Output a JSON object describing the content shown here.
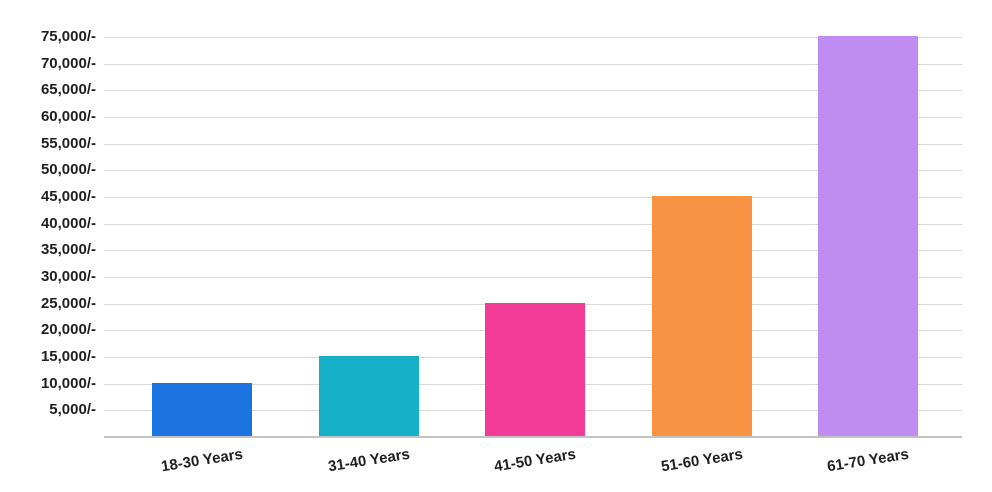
{
  "chart_data": {
    "type": "bar",
    "title": "",
    "xlabel": "",
    "ylabel": "",
    "categories": [
      "18-30 Years",
      "31-40 Years",
      "41-50 Years",
      "51-60 Years",
      "61-70 Years"
    ],
    "values": [
      10000,
      15000,
      25000,
      45000,
      75000
    ],
    "bar_colors": [
      "#1B73E0",
      "#17B0C9",
      "#F23B97",
      "#F79342",
      "#BF8DF2"
    ],
    "ylim": [
      0,
      75000
    ],
    "y_ticks": [
      {
        "value": 5000,
        "label": "5,000/-"
      },
      {
        "value": 10000,
        "label": "10,000/-"
      },
      {
        "value": 15000,
        "label": "15,000/-"
      },
      {
        "value": 20000,
        "label": "20,000/-"
      },
      {
        "value": 25000,
        "label": "25,000/-"
      },
      {
        "value": 30000,
        "label": "30,000/-"
      },
      {
        "value": 35000,
        "label": "35,000/-"
      },
      {
        "value": 40000,
        "label": "40,000/-"
      },
      {
        "value": 45000,
        "label": "45,000/-"
      },
      {
        "value": 50000,
        "label": "50,000/-"
      },
      {
        "value": 55000,
        "label": "55,000/-"
      },
      {
        "value": 60000,
        "label": "60,000/-"
      },
      {
        "value": 65000,
        "label": "65,000/-"
      },
      {
        "value": 70000,
        "label": "70,000/-"
      },
      {
        "value": 75000,
        "label": "75,000/-"
      }
    ],
    "grid": "horizontal",
    "legend": "none",
    "background": "#ffffff",
    "gridline_color": "#d9d9d9",
    "baseline_color": "#c3c3c3",
    "axis_text_color": "#1f1f1f",
    "x_label_rotation_deg": -9
  }
}
